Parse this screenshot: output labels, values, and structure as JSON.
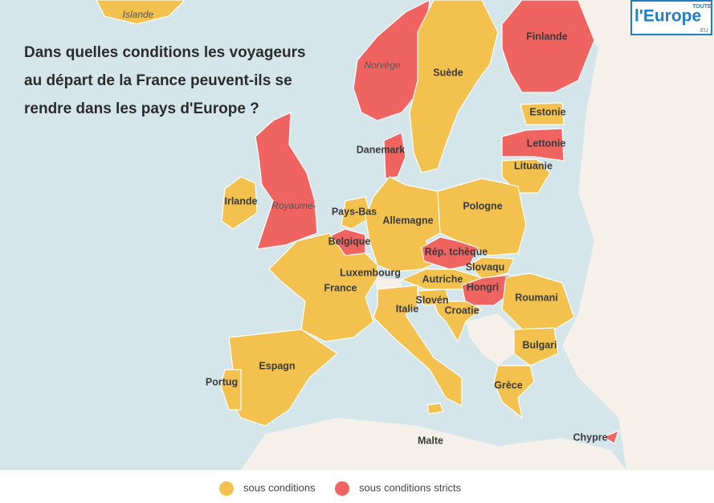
{
  "title": [
    "Dans quelles conditions les voyageurs",
    "au départ de la France peuvent-ils se",
    "rendre dans les pays d'Europe ?"
  ],
  "logo": {
    "top": "TOUTE",
    "main": "l'Europe",
    "suffix": ".EU"
  },
  "legend": [
    {
      "label": "sous conditions",
      "color": "#f2c14e"
    },
    {
      "label": "sous conditions stricts",
      "color": "#ef6461"
    }
  ],
  "countries": [
    {
      "label": "Islande",
      "color": "#f2c14e"
    },
    {
      "label": "Norvège",
      "color": "#ef6461"
    },
    {
      "label": "Suède",
      "color": "#f2c14e"
    },
    {
      "label": "Finlande",
      "color": "#ef6461"
    },
    {
      "label": "Estonie",
      "color": "#f2c14e"
    },
    {
      "label": "Lettonie",
      "color": "#ef6461"
    },
    {
      "label": "Lituanie",
      "color": "#f2c14e"
    },
    {
      "label": "Danemark",
      "color": "#ef6461"
    },
    {
      "label": "Irlande",
      "color": "#f2c14e"
    },
    {
      "label": "Royaume-",
      "color": "#ef6461"
    },
    {
      "label": "Pays-Bas",
      "color": "#f2c14e"
    },
    {
      "label": "Allemagne",
      "color": "#f2c14e"
    },
    {
      "label": "Pologne",
      "color": "#f2c14e"
    },
    {
      "label": "Belgique",
      "color": "#ef6461"
    },
    {
      "label": "Rép. tchèque",
      "color": "#ef6461"
    },
    {
      "label": "Luxembourg",
      "color": "#f2c14e"
    },
    {
      "label": "Slovaqu",
      "color": "#f2c14e"
    },
    {
      "label": "France",
      "color": "#f2c14e"
    },
    {
      "label": "Autriche",
      "color": "#f2c14e"
    },
    {
      "label": "Hongri",
      "color": "#ef6461"
    },
    {
      "label": "Slovén",
      "color": "#f2c14e"
    },
    {
      "label": "Roumani",
      "color": "#f2c14e"
    },
    {
      "label": "Italie",
      "color": "#f2c14e"
    },
    {
      "label": "Croatie",
      "color": "#f2c14e"
    },
    {
      "label": "Bulgari",
      "color": "#f2c14e"
    },
    {
      "label": "Espagn",
      "color": "#f2c14e"
    },
    {
      "label": "Portug",
      "color": "#f2c14e"
    },
    {
      "label": "Grèce",
      "color": "#f2c14e"
    },
    {
      "label": "Malte",
      "color": "#f2c14e"
    },
    {
      "label": "Chypre",
      "color": "#ef6461"
    }
  ]
}
